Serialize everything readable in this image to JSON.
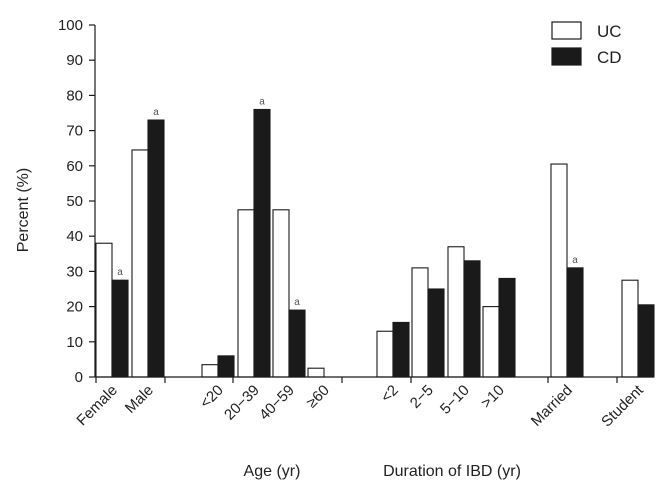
{
  "chart_data": {
    "type": "bar",
    "ylabel": "Percent (%)",
    "ylim": [
      0,
      100
    ],
    "yticks": [
      0,
      10,
      20,
      30,
      40,
      50,
      60,
      70,
      80,
      90,
      100
    ],
    "categories": [
      "Female",
      "Male",
      "<20",
      "20−39",
      "40−59",
      "≥60",
      "<2",
      "2−5",
      "5−10",
      ">10",
      "Married",
      "Student"
    ],
    "series": [
      {
        "name": "UC",
        "color": "#ffffff",
        "values": [
          38,
          64.5,
          3.5,
          47.5,
          47.5,
          2.5,
          13,
          31,
          37,
          20,
          60.5,
          27.5
        ]
      },
      {
        "name": "CD",
        "color": "#1a1a1a",
        "values": [
          27.5,
          73,
          6,
          76,
          19,
          0,
          15.5,
          25,
          33,
          28,
          31,
          20.5
        ]
      }
    ],
    "annotations": [
      {
        "series": "CD",
        "category": "Female",
        "text": "a"
      },
      {
        "series": "CD",
        "category": "Male",
        "text": "a"
      },
      {
        "series": "CD",
        "category": "20−39",
        "text": "a"
      },
      {
        "series": "CD",
        "category": "40−59",
        "text": "a"
      },
      {
        "series": "CD",
        "category": "Married",
        "text": "a"
      }
    ],
    "group_labels": [
      "Age (yr)",
      "Duration of IBD (yr)"
    ],
    "legend": {
      "position": "top-right",
      "entries": [
        "UC",
        "CD"
      ]
    },
    "grid": false
  }
}
